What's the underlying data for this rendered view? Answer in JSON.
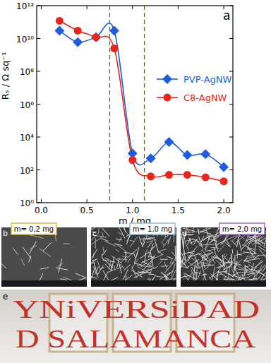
{
  "chart_data": {
    "type": "line",
    "x_label": "m / mg",
    "y_label": "Rₛ / Ω sq⁻¹",
    "annotations": [
      "a"
    ],
    "log": "y",
    "grid": false,
    "legend": "right",
    "xlim": [
      -0.05,
      2.1
    ],
    "ylim": [
      1,
      1000000000000
    ],
    "xticks": [
      {
        "value": 0,
        "label": "0.0"
      },
      {
        "value": 0.5,
        "label": "0.5"
      },
      {
        "value": 1,
        "label": "1.0"
      },
      {
        "value": 1.5,
        "label": "1.5"
      },
      {
        "value": 2,
        "label": "2.0"
      }
    ],
    "yticks": [
      {
        "value": 1,
        "label": "10⁰"
      },
      {
        "value": 100,
        "label": "10²"
      },
      {
        "value": 10000,
        "label": "10⁴"
      },
      {
        "value": 1000000,
        "label": "10⁶"
      },
      {
        "value": 100000000,
        "label": "10⁸"
      },
      {
        "value": 10000000000,
        "label": "10¹⁰"
      },
      {
        "value": 1000000000000,
        "label": "10¹²"
      }
    ],
    "vlines": [
      0.75,
      1.13
    ],
    "x": [
      0.2,
      0.4,
      0.6,
      0.8,
      1.0,
      1.2,
      1.4,
      1.6,
      1.8,
      2.0
    ],
    "series": [
      {
        "name": "PVP-AgNW",
        "color": "#1f5ce0",
        "marker": "diamond",
        "line_style": "smooth",
        "values": [
          30000000000,
          6000000000,
          12000000000,
          30000000000,
          1000,
          500,
          5000,
          800,
          900,
          150
        ]
      },
      {
        "name": "C8-AgNW",
        "color": "#e8261c",
        "marker": "circle",
        "line_style": "smooth",
        "values": [
          120000000000,
          30000000000,
          12000000000,
          2500000000,
          400,
          40,
          50,
          50,
          35,
          20
        ]
      }
    ]
  },
  "sem_images": [
    {
      "label": "b",
      "caption": "m= 0,2 mg"
    },
    {
      "label": "c",
      "caption": "m= 1,0 mg"
    },
    {
      "label": "d",
      "caption": "m= 2,0 mg"
    }
  ],
  "photo": {
    "label": "e",
    "lines": [
      "YNiVERSiDAD",
      "D SALAMANCA"
    ]
  }
}
